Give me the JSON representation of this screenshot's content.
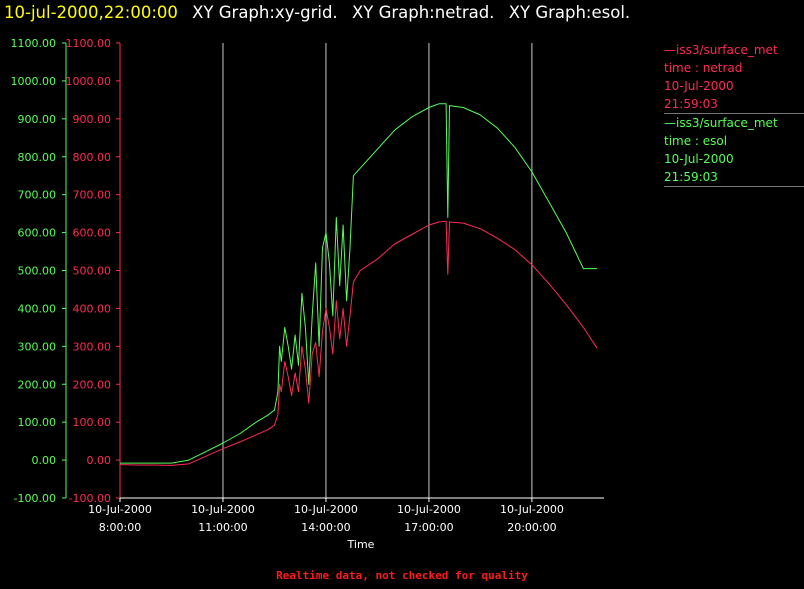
{
  "title": {
    "timestamp": "10-jul-2000,22:00:00",
    "graphs": [
      "XY Graph:xy-grid.",
      "XY Graph:netrad.",
      "XY Graph:esol."
    ]
  },
  "colors": {
    "timestamp": "#ffff00",
    "netrad": "#ff2a55",
    "esol": "#55ff55",
    "grid": "#c8c8c8",
    "axis": "#ffffff",
    "footer": "#ff1a1a",
    "background": "#000000"
  },
  "legend": {
    "entries": [
      {
        "lines": [
          "—iss3/surface_met",
          "time : netrad",
          "10-Jul-2000",
          "21:59:03"
        ],
        "color": "#ff2a55"
      },
      {
        "lines": [
          "—iss3/surface_met",
          "time : esol",
          "10-Jul-2000",
          "21:59:03"
        ],
        "color": "#55ff55"
      }
    ]
  },
  "footer": "Realtime data, not checked for quality",
  "chart_data": {
    "type": "line",
    "xlabel": "Time",
    "x_unit": "hours on 10-Jul-2000",
    "xlim": [
      8.0,
      22.1
    ],
    "x_ticks": [
      {
        "value": 8,
        "date": "10-Jul-2000",
        "time": "8:00:00"
      },
      {
        "value": 11,
        "date": "10-Jul-2000",
        "time": "11:00:00"
      },
      {
        "value": 14,
        "date": "10-Jul-2000",
        "time": "14:00:00"
      },
      {
        "value": 17,
        "date": "10-Jul-2000",
        "time": "17:00:00"
      },
      {
        "value": 20,
        "date": "10-Jul-2000",
        "time": "20:00:00"
      }
    ],
    "ylim": [
      -100,
      1100
    ],
    "y_ticks": [
      "-100.00",
      "0.00",
      "100.00",
      "200.00",
      "300.00",
      "400.00",
      "500.00",
      "600.00",
      "700.00",
      "800.00",
      "900.00",
      "1000.00",
      "1100.00"
    ],
    "vertical_grid": true,
    "series": [
      {
        "name": "time : netrad",
        "color": "#ff2a55",
        "points": [
          [
            8.0,
            -12
          ],
          [
            8.5,
            -13
          ],
          [
            9.0,
            -13
          ],
          [
            9.5,
            -14
          ],
          [
            10.0,
            -10
          ],
          [
            10.5,
            10
          ],
          [
            11.0,
            30
          ],
          [
            11.5,
            48
          ],
          [
            12.0,
            68
          ],
          [
            12.3,
            80
          ],
          [
            12.5,
            92
          ],
          [
            12.6,
            120
          ],
          [
            12.65,
            200
          ],
          [
            12.7,
            180
          ],
          [
            12.8,
            260
          ],
          [
            12.9,
            220
          ],
          [
            13.0,
            170
          ],
          [
            13.1,
            230
          ],
          [
            13.2,
            180
          ],
          [
            13.3,
            300
          ],
          [
            13.4,
            240
          ],
          [
            13.5,
            150
          ],
          [
            13.6,
            280
          ],
          [
            13.7,
            310
          ],
          [
            13.8,
            220
          ],
          [
            13.9,
            340
          ],
          [
            14.0,
            400
          ],
          [
            14.1,
            350
          ],
          [
            14.2,
            280
          ],
          [
            14.3,
            420
          ],
          [
            14.4,
            320
          ],
          [
            14.5,
            400
          ],
          [
            14.6,
            300
          ],
          [
            14.7,
            380
          ],
          [
            14.8,
            470
          ],
          [
            15.0,
            500
          ],
          [
            15.5,
            530
          ],
          [
            16.0,
            570
          ],
          [
            16.5,
            595
          ],
          [
            17.0,
            620
          ],
          [
            17.3,
            628
          ],
          [
            17.5,
            630
          ],
          [
            17.55,
            490
          ],
          [
            17.6,
            628
          ],
          [
            18.0,
            625
          ],
          [
            18.5,
            610
          ],
          [
            19.0,
            585
          ],
          [
            19.5,
            555
          ],
          [
            20.0,
            515
          ],
          [
            20.5,
            465
          ],
          [
            21.0,
            410
          ],
          [
            21.5,
            350
          ],
          [
            21.9,
            295
          ]
        ]
      },
      {
        "name": "time : esol",
        "color": "#55ff55",
        "points": [
          [
            8.0,
            -8
          ],
          [
            8.5,
            -8
          ],
          [
            9.0,
            -8
          ],
          [
            9.5,
            -8
          ],
          [
            10.0,
            0
          ],
          [
            10.5,
            22
          ],
          [
            11.0,
            45
          ],
          [
            11.5,
            70
          ],
          [
            12.0,
            102
          ],
          [
            12.3,
            118
          ],
          [
            12.5,
            132
          ],
          [
            12.6,
            180
          ],
          [
            12.65,
            300
          ],
          [
            12.7,
            260
          ],
          [
            12.8,
            350
          ],
          [
            12.9,
            300
          ],
          [
            13.0,
            240
          ],
          [
            13.1,
            330
          ],
          [
            13.2,
            250
          ],
          [
            13.3,
            440
          ],
          [
            13.4,
            350
          ],
          [
            13.5,
            200
          ],
          [
            13.6,
            380
          ],
          [
            13.7,
            520
          ],
          [
            13.8,
            300
          ],
          [
            13.9,
            560
          ],
          [
            14.0,
            600
          ],
          [
            14.1,
            520
          ],
          [
            14.2,
            380
          ],
          [
            14.3,
            640
          ],
          [
            14.4,
            460
          ],
          [
            14.5,
            620
          ],
          [
            14.6,
            420
          ],
          [
            14.7,
            560
          ],
          [
            14.8,
            750
          ],
          [
            15.0,
            770
          ],
          [
            15.5,
            820
          ],
          [
            16.0,
            870
          ],
          [
            16.5,
            905
          ],
          [
            17.0,
            930
          ],
          [
            17.3,
            940
          ],
          [
            17.5,
            940
          ],
          [
            17.55,
            640
          ],
          [
            17.6,
            935
          ],
          [
            18.0,
            930
          ],
          [
            18.5,
            910
          ],
          [
            19.0,
            875
          ],
          [
            19.5,
            825
          ],
          [
            20.0,
            760
          ],
          [
            20.5,
            680
          ],
          [
            21.0,
            600
          ],
          [
            21.5,
            505
          ],
          [
            21.9,
            505
          ]
        ]
      }
    ]
  }
}
